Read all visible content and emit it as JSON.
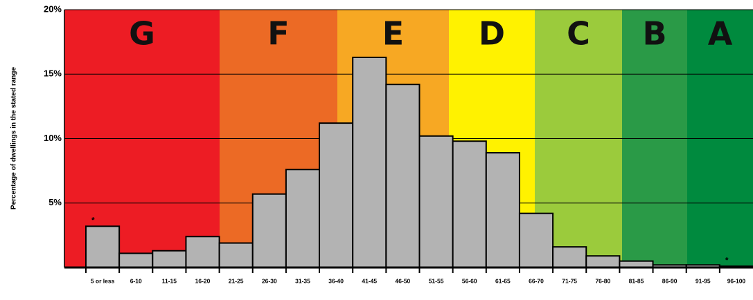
{
  "chart_data": {
    "type": "bar",
    "y_label": "Percentage of dwellings in the stated range",
    "categories": [
      "5 or less",
      "6-10",
      "11-15",
      "16-20",
      "21-25",
      "26-30",
      "31-35",
      "36-40",
      "41-45",
      "46-50",
      "51-55",
      "56-60",
      "61-65",
      "66-70",
      "71-75",
      "76-80",
      "81-85",
      "86-90",
      "91-95",
      "96-100"
    ],
    "values": [
      3.2,
      1.1,
      1.3,
      2.4,
      1.9,
      5.7,
      7.6,
      11.2,
      16.3,
      14.2,
      10.2,
      9.8,
      8.9,
      4.2,
      1.6,
      0.9,
      0.5,
      0.2,
      0.2,
      0.1
    ],
    "color": "#b3b3b3",
    "ylim": [
      0,
      20
    ],
    "yticks": [
      {
        "value": 5,
        "label": "5%"
      },
      {
        "value": 10,
        "label": "10%"
      },
      {
        "value": 15,
        "label": "15%"
      },
      {
        "value": 20,
        "label": "20%"
      }
    ],
    "grid": true,
    "bands": [
      {
        "label": "G",
        "color": "#ed1c24"
      },
      {
        "label": "F",
        "color": "#ec6a25"
      },
      {
        "label": "E",
        "color": "#f7a823"
      },
      {
        "label": "D",
        "color": "#fff200"
      },
      {
        "label": "C",
        "color": "#9bcb3c"
      },
      {
        "label": "B",
        "color": "#2a9a47"
      },
      {
        "label": "A",
        "color": "#008a3e"
      }
    ],
    "annotations": [
      {
        "text": "*",
        "category": "5 or less"
      },
      {
        "text": "*",
        "category": "96-100"
      }
    ]
  }
}
